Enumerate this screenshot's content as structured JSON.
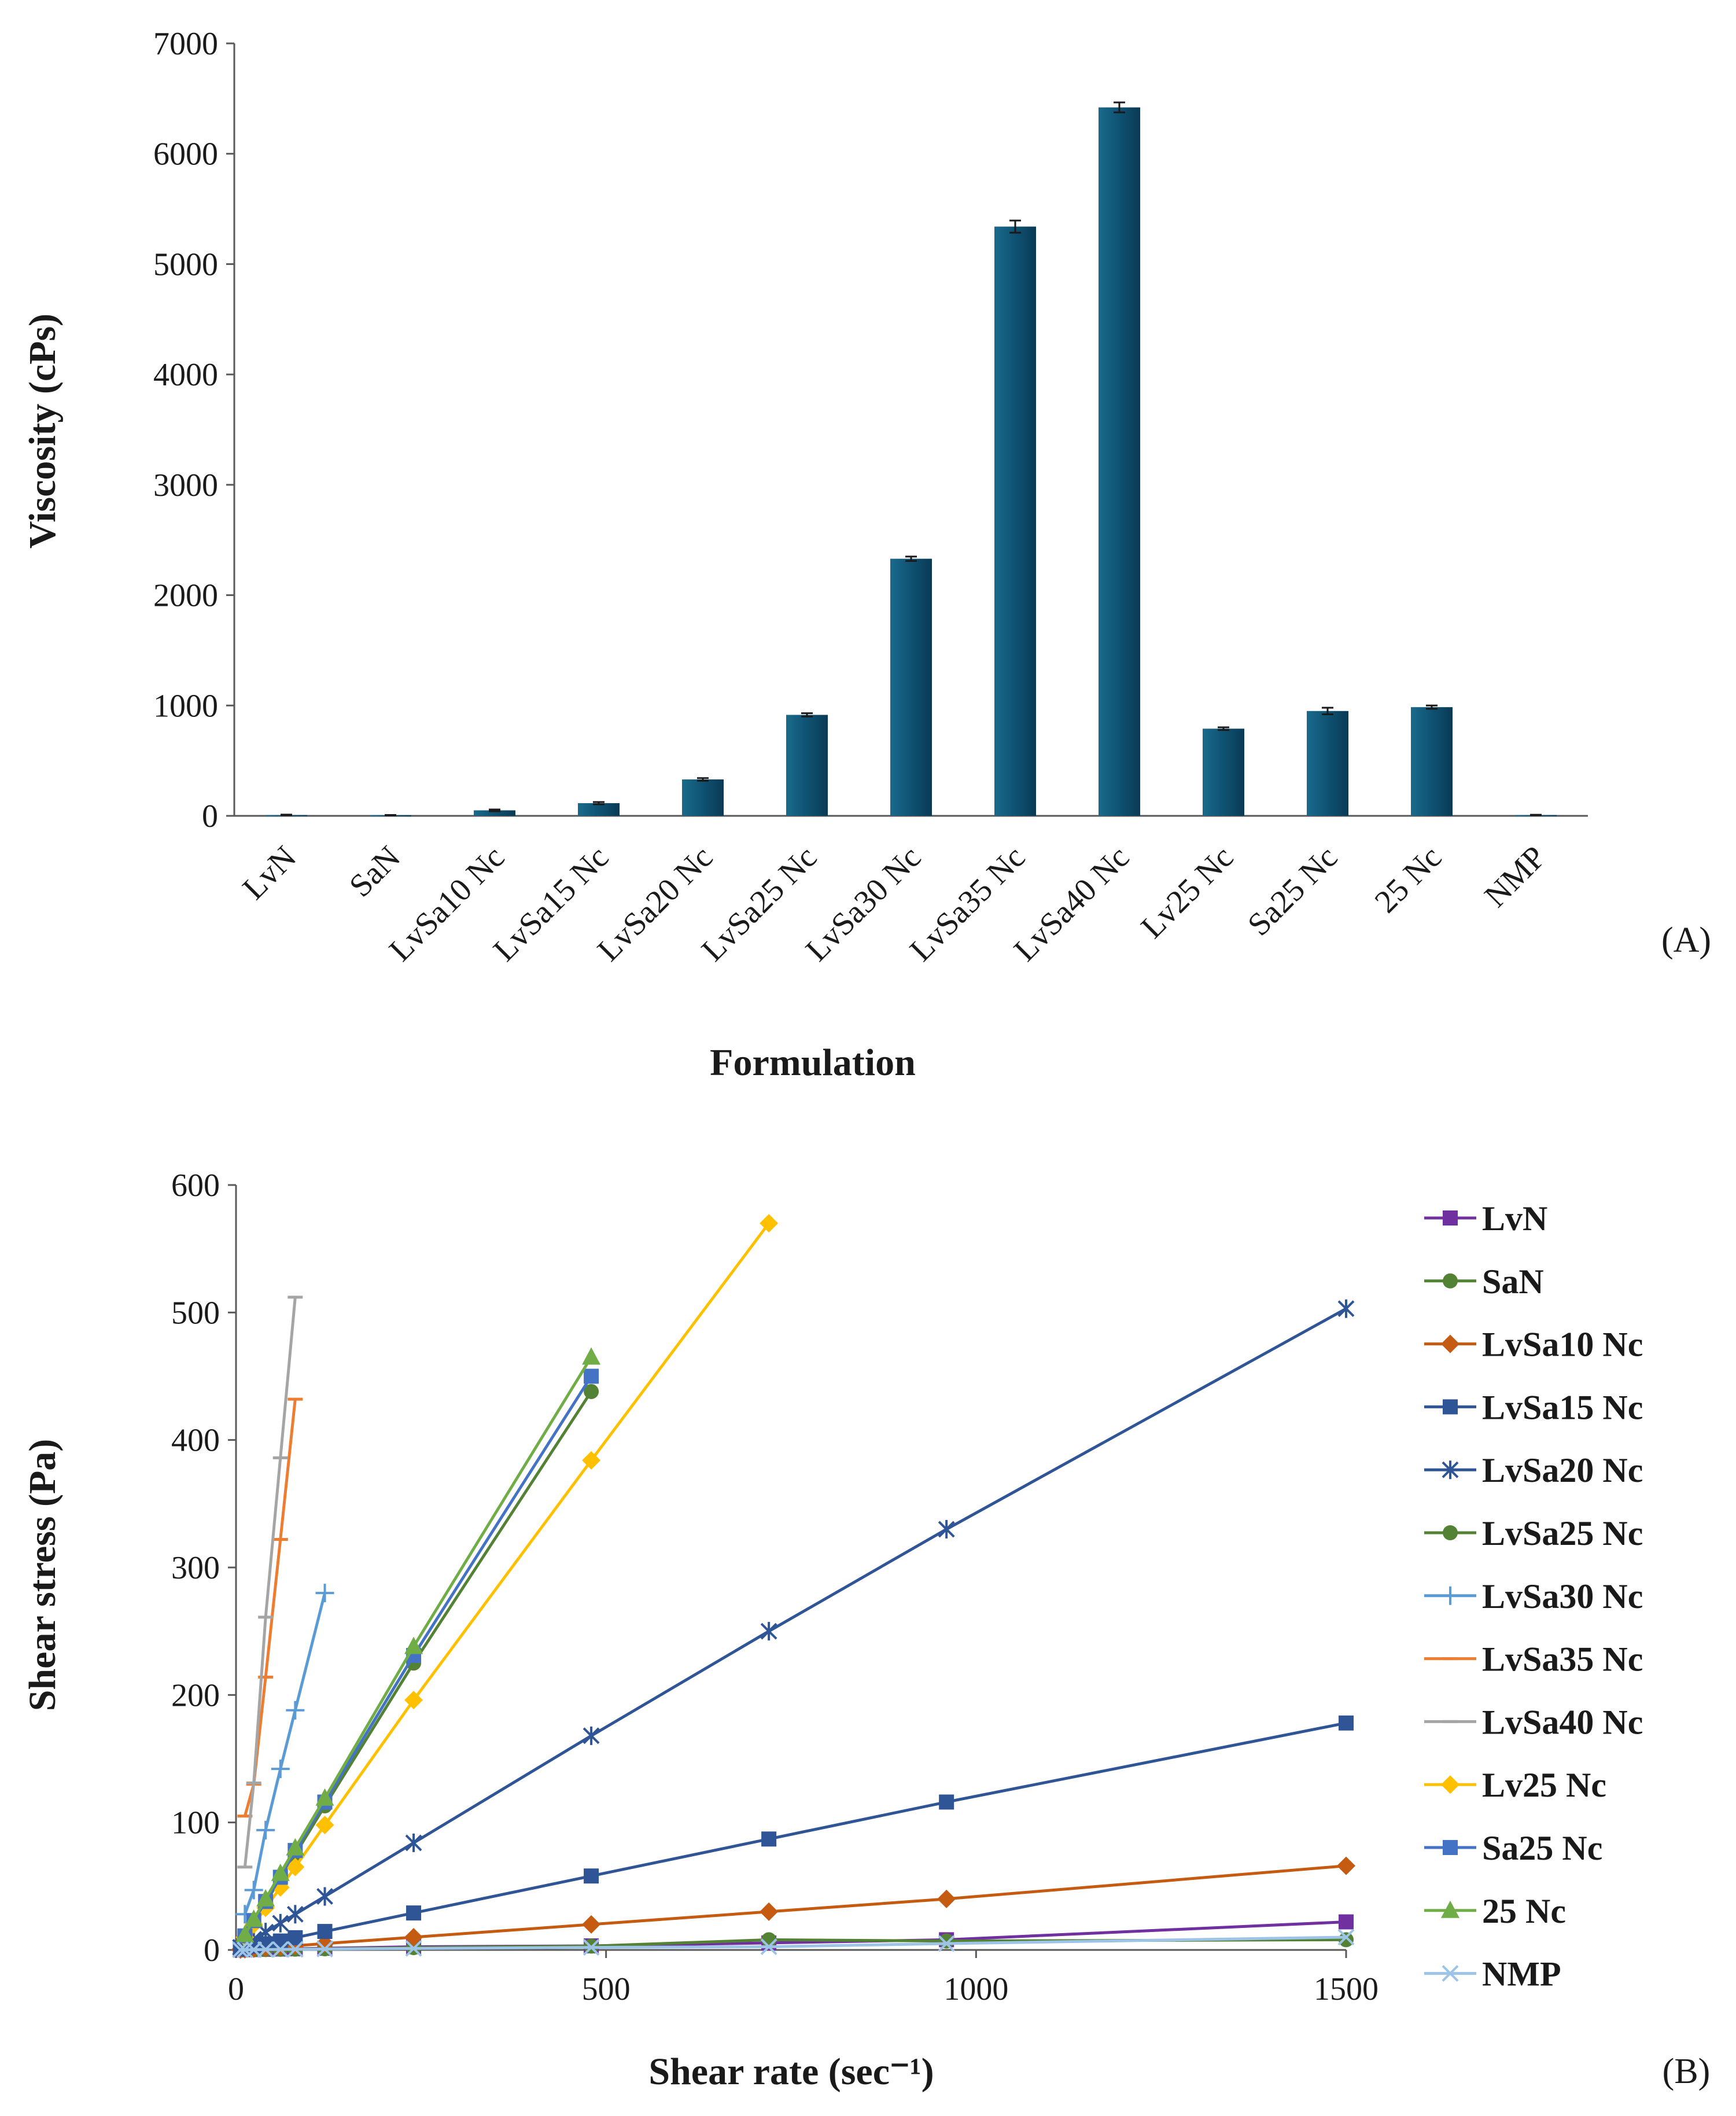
{
  "chart_data": [
    {
      "type": "bar",
      "panel_label": "(A)",
      "xlabel": "Formulation",
      "ylabel": "Viscosity (cPs)",
      "ylim": [
        0,
        7000
      ],
      "yticks": [
        "0",
        "1000",
        "2000",
        "3000",
        "4000",
        "5000",
        "6000",
        "7000"
      ],
      "categories": [
        "LvN",
        "SaN",
        "LvSa10 Nc",
        "LvSa15 Nc",
        "LvSa20 Nc",
        "LvSa25 Nc",
        "LvSa30 Nc",
        "LvSa35 Nc",
        "LvSa40 Nc",
        "Lv25 Nc",
        "Sa25 Nc",
        "25 Nc",
        "NMP"
      ],
      "values": [
        8,
        6,
        50,
        115,
        330,
        915,
        2330,
        5340,
        6420,
        790,
        950,
        985,
        8
      ],
      "errors": [
        3,
        2,
        8,
        10,
        12,
        15,
        20,
        55,
        45,
        12,
        30,
        15,
        2
      ],
      "bar_color": "#0f5272"
    },
    {
      "type": "line",
      "panel_label": "(B)",
      "xlabel": "Shear rate (sec⁻¹)",
      "ylabel": "Shear stress (Pa)",
      "xlim": [
        0,
        1500
      ],
      "ylim": [
        0,
        600
      ],
      "xticks": [
        "0",
        "500",
        "1000",
        "1500"
      ],
      "yticks": [
        "0",
        "100",
        "200",
        "300",
        "400",
        "500",
        "600"
      ],
      "legend_position": "right",
      "series": [
        {
          "name": "LvN",
          "color": "#7030a0",
          "marker": "square",
          "x": [
            6,
            12,
            24,
            40,
            60,
            80,
            120,
            240,
            480,
            720,
            960,
            1500
          ],
          "y": [
            0.1,
            0.2,
            0.3,
            0.5,
            0.7,
            0.9,
            1.3,
            2.5,
            3.2,
            5.5,
            8,
            22
          ]
        },
        {
          "name": "SaN",
          "color": "#548235",
          "marker": "circle",
          "x": [
            6,
            12,
            24,
            40,
            60,
            80,
            120,
            240,
            480,
            720,
            960,
            1500
          ],
          "y": [
            0.1,
            0.1,
            0.2,
            0.3,
            0.5,
            0.6,
            0.9,
            1.8,
            3,
            8,
            7,
            8
          ]
        },
        {
          "name": "LvSa10 Nc",
          "color": "#c55a11",
          "marker": "diamond",
          "x": [
            6,
            12,
            24,
            40,
            60,
            80,
            120,
            240,
            480,
            720,
            960,
            1500
          ],
          "y": [
            0.3,
            0.5,
            1,
            1.7,
            2.5,
            3.3,
            5,
            10,
            20,
            30,
            40,
            66
          ]
        },
        {
          "name": "LvSa15 Nc",
          "color": "#2f5597",
          "marker": "square",
          "x": [
            6,
            12,
            24,
            40,
            60,
            80,
            120,
            240,
            480,
            720,
            960,
            1500
          ],
          "y": [
            0.7,
            1.4,
            2.9,
            4.8,
            7,
            9.6,
            14.5,
            29,
            58,
            87,
            116,
            178
          ]
        },
        {
          "name": "LvSa20 Nc",
          "color": "#2f5597",
          "marker": "star",
          "x": [
            6,
            12,
            24,
            40,
            60,
            80,
            120,
            240,
            480,
            720,
            960,
            1500
          ],
          "y": [
            2.1,
            4.2,
            8.4,
            14,
            21,
            28,
            42,
            84,
            168,
            250,
            330,
            503
          ]
        },
        {
          "name": "LvSa25 Nc",
          "color": "#548235",
          "marker": "circle",
          "x": [
            12,
            24,
            40,
            60,
            80,
            120,
            240,
            480
          ],
          "y": [
            11,
            22,
            37,
            56,
            75,
            113,
            225,
            438
          ]
        },
        {
          "name": "LvSa30 Nc",
          "color": "#5b9bd5",
          "marker": "plus",
          "x": [
            12,
            24,
            40,
            60,
            80,
            120
          ],
          "y": [
            28,
            47,
            94,
            142,
            188,
            280
          ]
        },
        {
          "name": "LvSa35 Nc",
          "color": "#ed7d31",
          "marker": "dash",
          "x": [
            12,
            24,
            40,
            60,
            80
          ],
          "y": [
            105,
            130,
            214,
            322,
            432
          ]
        },
        {
          "name": "LvSa40 Nc",
          "color": "#a5a5a5",
          "marker": "dash",
          "x": [
            12,
            24,
            40,
            60,
            80
          ],
          "y": [
            65,
            131,
            261,
            386,
            512
          ]
        },
        {
          "name": "Lv25 Nc",
          "color": "#ffc000",
          "marker": "diamond",
          "x": [
            12,
            24,
            40,
            60,
            80,
            120,
            240,
            480,
            720
          ],
          "y": [
            10,
            20,
            33,
            49,
            65,
            98,
            196,
            384,
            570
          ]
        },
        {
          "name": "Sa25 Nc",
          "color": "#4472c4",
          "marker": "square",
          "x": [
            12,
            24,
            40,
            60,
            80,
            120,
            240,
            480
          ],
          "y": [
            11,
            23,
            38,
            57,
            78,
            116,
            231,
            450
          ]
        },
        {
          "name": "25 Nc",
          "color": "#70ad47",
          "marker": "triangle",
          "x": [
            12,
            24,
            40,
            60,
            80,
            120,
            240,
            480
          ],
          "y": [
            12,
            24,
            40,
            60,
            80,
            119,
            238,
            465
          ]
        },
        {
          "name": "NMP",
          "color": "#9dc3e6",
          "marker": "x",
          "x": [
            6,
            12,
            24,
            40,
            60,
            80,
            120,
            240,
            480,
            720,
            960,
            1500
          ],
          "y": [
            0.05,
            0.1,
            0.2,
            0.3,
            0.4,
            0.5,
            0.7,
            1.2,
            2,
            2.5,
            5,
            10
          ]
        }
      ]
    }
  ]
}
